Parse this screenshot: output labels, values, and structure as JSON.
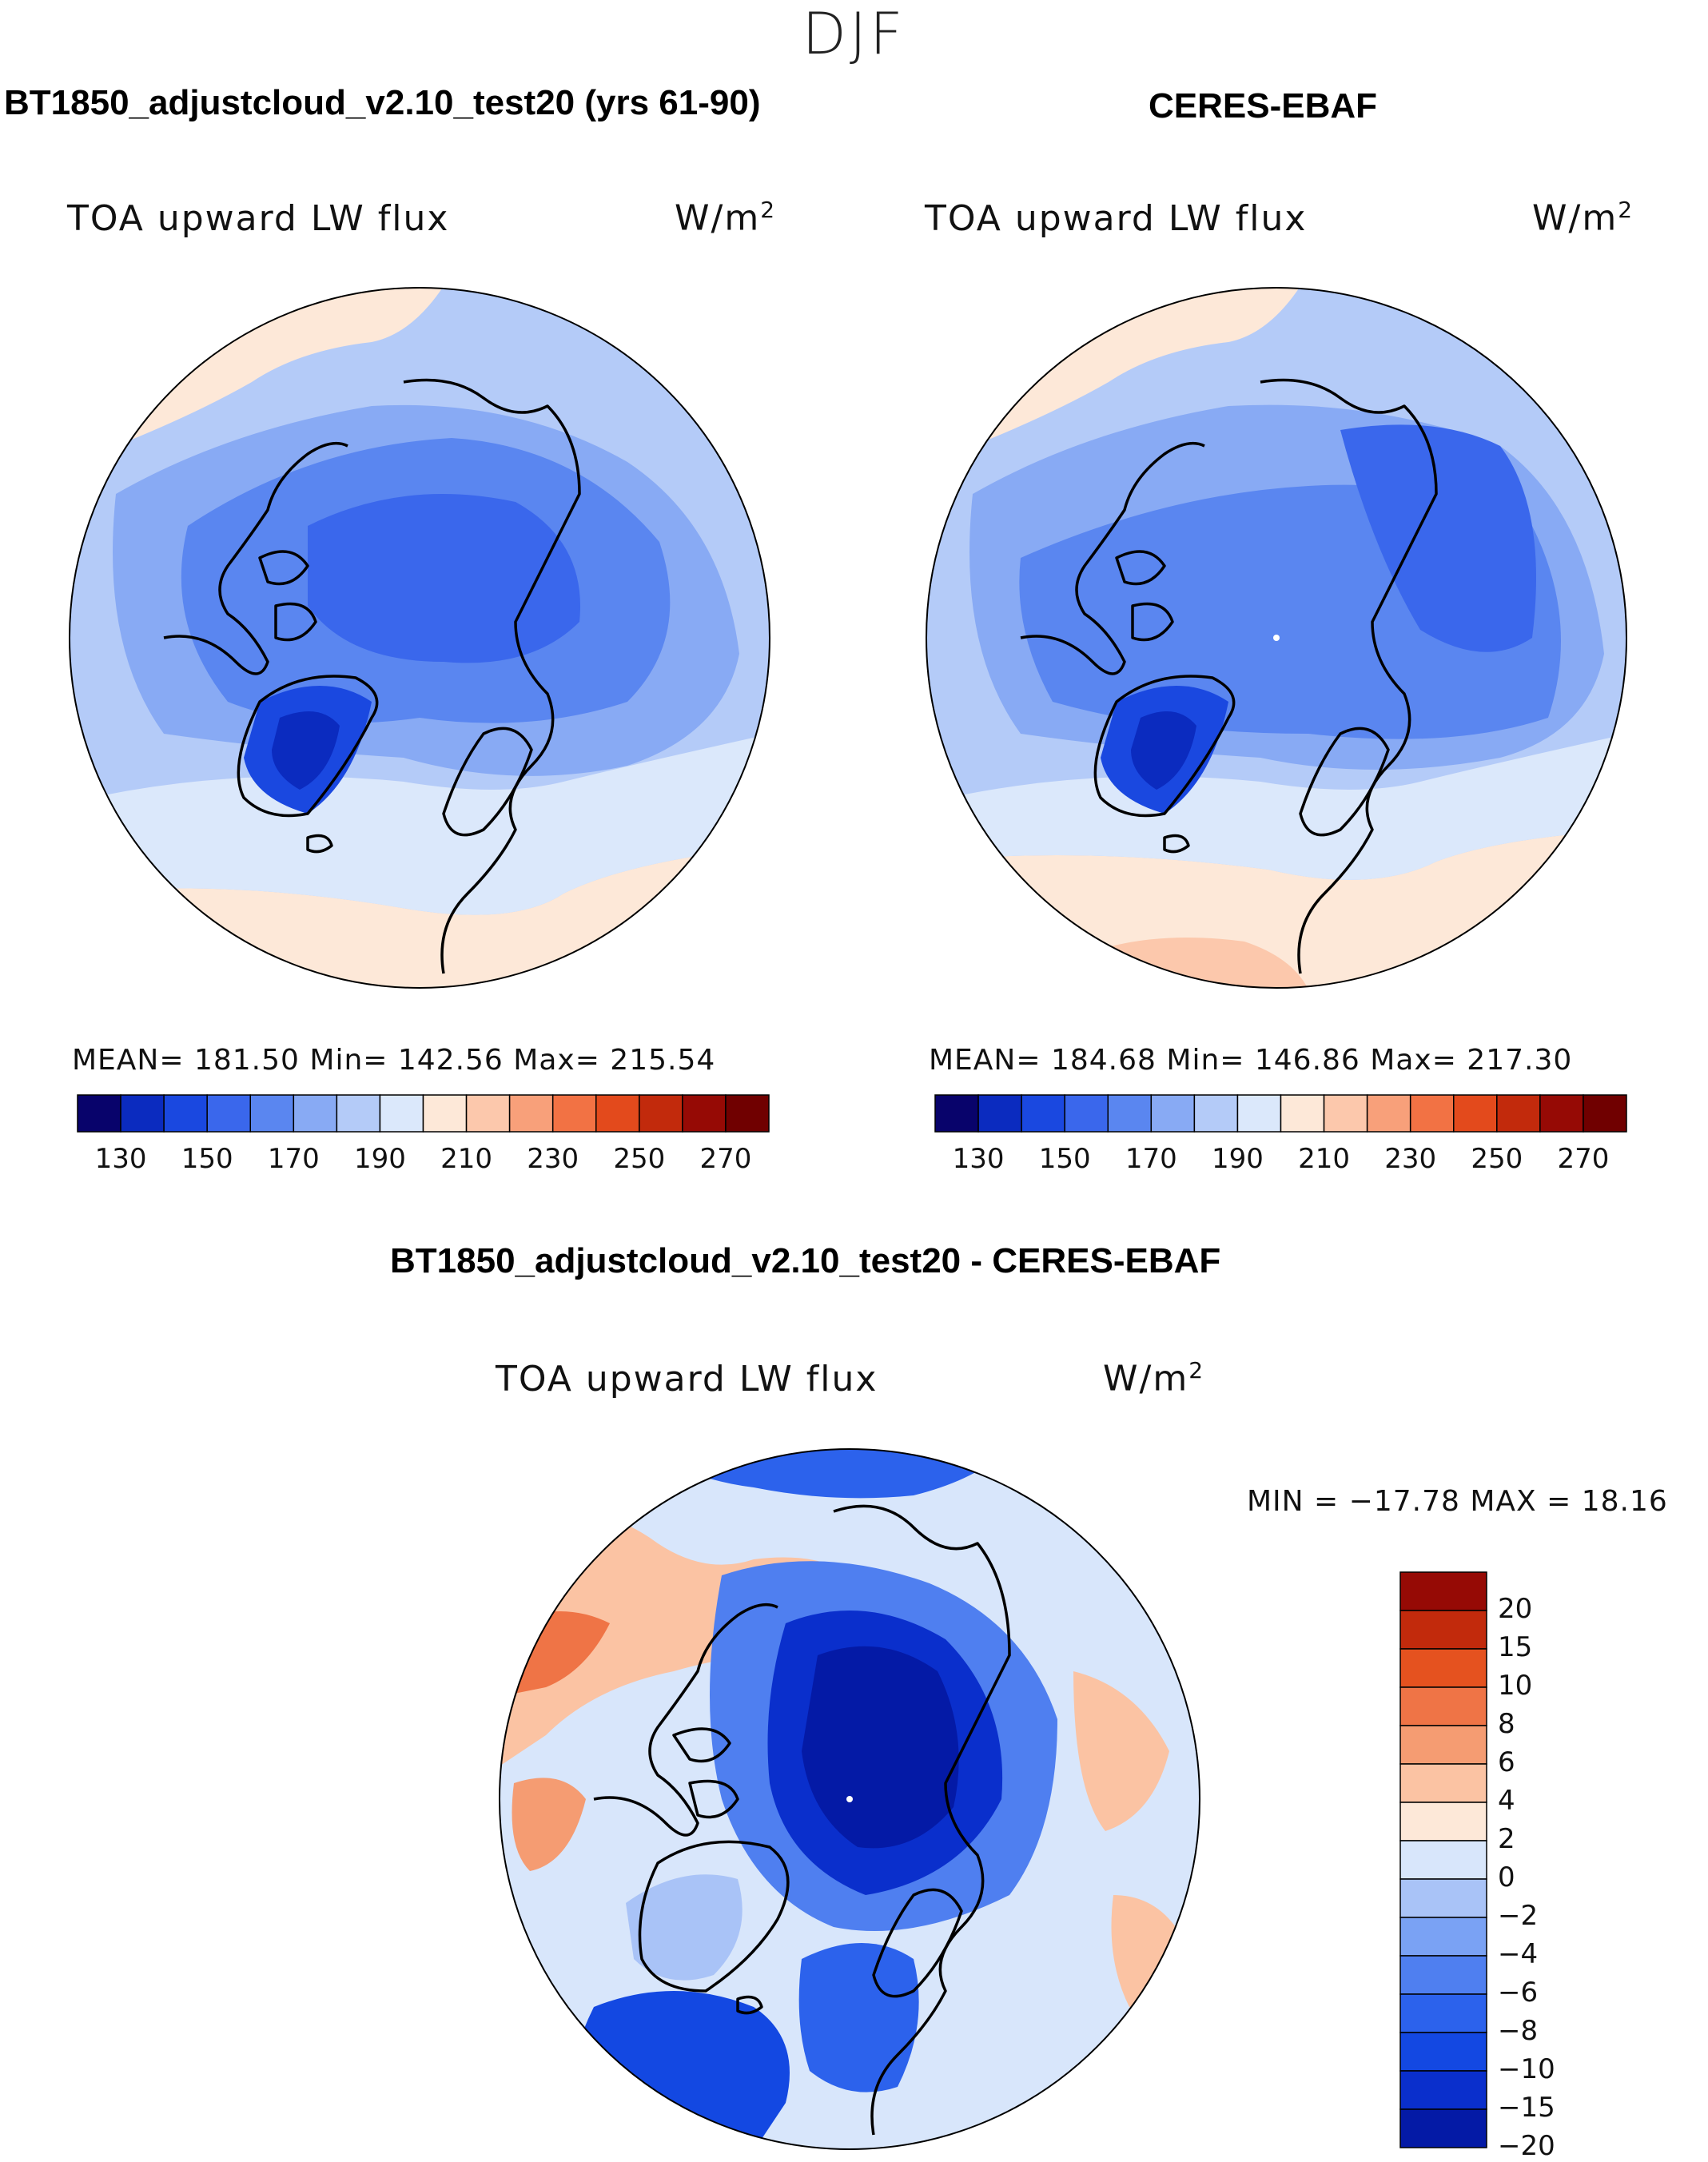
{
  "figure": {
    "season": "DJF",
    "variable_label": "TOA upward LW flux",
    "units_base": "W/m",
    "units_exp": "2",
    "colors": {
      "coastline": "#000000",
      "seq_scale": [
        "#08036b",
        "#0b2bbf",
        "#1a48e0",
        "#3a67ec",
        "#5a86f0",
        "#88aaf4",
        "#b4cbf8",
        "#dbe8fb",
        "#fde8d8",
        "#fcc8ac",
        "#f8a07a",
        "#f27244",
        "#e34a1c",
        "#c22a0c",
        "#960a05",
        "#700000"
      ],
      "diff_scale": [
        "#041aa6",
        "#0a2fcc",
        "#1348e2",
        "#2c62ec",
        "#4f7ff0",
        "#7aa2f4",
        "#a9c3f7",
        "#d8e6fb",
        "#fde8d8",
        "#fbc3a3",
        "#f59c72",
        "#ef7446",
        "#e5521f",
        "#c22a0c",
        "#960a05"
      ]
    }
  },
  "panels": [
    {
      "title": "BT1850_adjustcloud_v2.10_test20 (yrs 61-90)",
      "stats": "MEAN=  181.50   Min=  142.56   Max=  215.54"
    },
    {
      "title": "CERES-EBAF",
      "stats": "MEAN=  184.68   Min=  146.86   Max=  217.30"
    },
    {
      "title": "BT1850_adjustcloud_v2.10_test20 - CERES-EBAF",
      "stats": "MIN = −17.78  MAX =   18.16"
    }
  ],
  "chart_data": [
    {
      "type": "heatmap",
      "title": "BT1850_adjustcloud_v2.10_test20 (yrs 61-90)",
      "projection": "north polar stereographic",
      "variable": "TOA upward LW flux",
      "units": "W/m2",
      "mean": 181.5,
      "min": 142.56,
      "max": 215.54,
      "colorbar_levels": [
        130,
        140,
        150,
        160,
        170,
        180,
        190,
        200,
        210,
        220,
        230,
        240,
        250,
        260,
        270
      ],
      "colorbar_tick_labels": [
        "130",
        "150",
        "170",
        "190",
        "210",
        "230",
        "250",
        "270"
      ]
    },
    {
      "type": "heatmap",
      "title": "CERES-EBAF",
      "projection": "north polar stereographic",
      "variable": "TOA upward LW flux",
      "units": "W/m2",
      "mean": 184.68,
      "min": 146.86,
      "max": 217.3,
      "colorbar_levels": [
        130,
        140,
        150,
        160,
        170,
        180,
        190,
        200,
        210,
        220,
        230,
        240,
        250,
        260,
        270
      ],
      "colorbar_tick_labels": [
        "130",
        "150",
        "170",
        "190",
        "210",
        "230",
        "250",
        "270"
      ]
    },
    {
      "type": "heatmap",
      "title": "BT1850_adjustcloud_v2.10_test20 - CERES-EBAF",
      "projection": "north polar stereographic",
      "variable": "TOA upward LW flux",
      "units": "W/m2",
      "min": -17.78,
      "max": 18.16,
      "colorbar_levels": [
        20,
        15,
        10,
        8,
        6,
        4,
        2,
        0,
        -2,
        -4,
        -6,
        -8,
        -10,
        -15,
        -20
      ],
      "colorbar_tick_labels": [
        "20",
        "15",
        "10",
        "8",
        "6",
        "4",
        "2",
        "0",
        "−2",
        "−4",
        "−6",
        "−8",
        "−10",
        "−15",
        "−20"
      ]
    }
  ]
}
